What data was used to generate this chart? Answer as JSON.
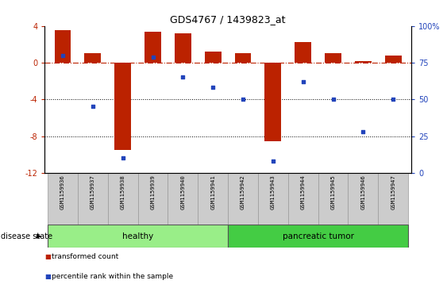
{
  "title": "GDS4767 / 1439823_at",
  "samples": [
    "GSM1159936",
    "GSM1159937",
    "GSM1159938",
    "GSM1159939",
    "GSM1159940",
    "GSM1159941",
    "GSM1159942",
    "GSM1159943",
    "GSM1159944",
    "GSM1159945",
    "GSM1159946",
    "GSM1159947"
  ],
  "transformed_count": [
    3.5,
    1.0,
    -9.5,
    3.4,
    3.2,
    1.2,
    1.0,
    -8.6,
    2.2,
    1.0,
    0.15,
    0.8
  ],
  "percentile_rank": [
    80,
    45,
    10,
    79,
    65,
    58,
    50,
    8,
    62,
    50,
    28,
    50
  ],
  "healthy_count": 6,
  "pancreatic_count": 6,
  "healthy_label": "healthy",
  "pancreatic_label": "pancreatic tumor",
  "disease_state_label": "disease state",
  "legend1": "transformed count",
  "legend2": "percentile rank within the sample",
  "bar_color": "#BB2200",
  "dot_color": "#2244BB",
  "ylim_left": [
    -12,
    4
  ],
  "ylim_right": [
    0,
    100
  ],
  "yticks_left": [
    -12,
    -8,
    -4,
    0,
    4
  ],
  "yticks_right": [
    0,
    25,
    50,
    75,
    100
  ],
  "yticklabels_right": [
    "0",
    "25",
    "50",
    "75",
    "100%"
  ],
  "healthy_color": "#99EE88",
  "pancreatic_color": "#44CC44",
  "label_bg_color": "#CCCCCC",
  "label_edge_color": "#999999",
  "grid_color": "#000000",
  "hline_color": "#BB2200"
}
